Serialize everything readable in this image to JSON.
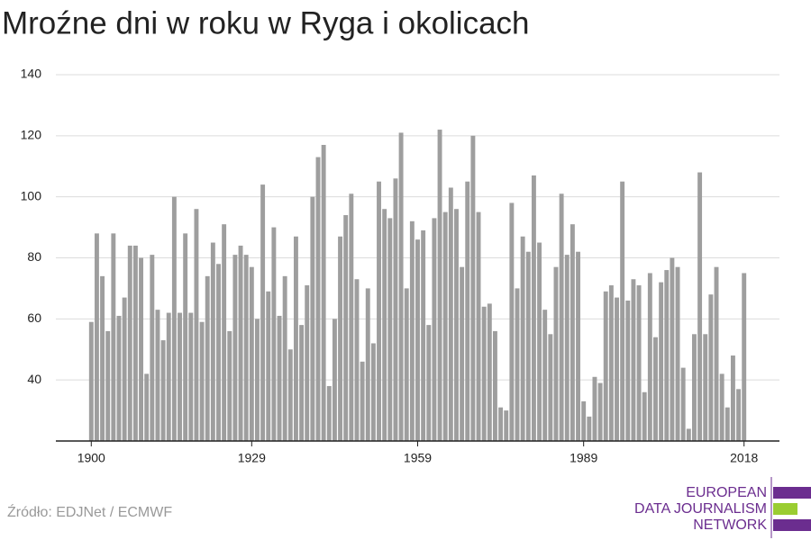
{
  "chart_data": {
    "type": "bar",
    "title": "Mroźne dni w roku w Ryga i okolicach",
    "source": "Źródło: EDJNet / ECMWF",
    "logo": [
      "EUROPEAN",
      "DATA JOURNALISM",
      "NETWORK"
    ],
    "color": "#9e9e9e",
    "grid": true,
    "x": [
      1900,
      1901,
      1902,
      1903,
      1904,
      1905,
      1906,
      1907,
      1908,
      1909,
      1910,
      1911,
      1912,
      1913,
      1914,
      1915,
      1916,
      1917,
      1918,
      1919,
      1920,
      1921,
      1922,
      1923,
      1924,
      1925,
      1926,
      1927,
      1928,
      1929,
      1930,
      1931,
      1932,
      1933,
      1934,
      1935,
      1936,
      1937,
      1938,
      1939,
      1940,
      1941,
      1942,
      1943,
      1944,
      1945,
      1946,
      1947,
      1948,
      1949,
      1950,
      1951,
      1952,
      1953,
      1954,
      1955,
      1956,
      1957,
      1958,
      1959,
      1960,
      1961,
      1962,
      1963,
      1964,
      1965,
      1966,
      1967,
      1968,
      1969,
      1970,
      1971,
      1972,
      1973,
      1974,
      1975,
      1976,
      1977,
      1978,
      1979,
      1980,
      1981,
      1982,
      1983,
      1984,
      1985,
      1986,
      1987,
      1988,
      1989,
      1990,
      1991,
      1992,
      1993,
      1994,
      1995,
      1996,
      1997,
      1998,
      1999,
      2000,
      2001,
      2002,
      2003,
      2004,
      2005,
      2006,
      2007,
      2008,
      2009,
      2010,
      2011,
      2012,
      2013,
      2014,
      2015,
      2016,
      2017,
      2018
    ],
    "values": [
      59,
      88,
      74,
      56,
      88,
      61,
      67,
      84,
      84,
      80,
      42,
      81,
      63,
      53,
      62,
      100,
      62,
      88,
      62,
      96,
      59,
      74,
      85,
      78,
      91,
      56,
      81,
      84,
      81,
      77,
      60,
      104,
      69,
      90,
      61,
      74,
      50,
      87,
      58,
      71,
      100,
      113,
      117,
      38,
      60,
      87,
      94,
      101,
      73,
      46,
      70,
      52,
      105,
      96,
      93,
      106,
      121,
      70,
      92,
      86,
      89,
      58,
      93,
      122,
      95,
      103,
      96,
      77,
      105,
      120,
      95,
      64,
      65,
      56,
      31,
      30,
      98,
      70,
      87,
      82,
      107,
      85,
      63,
      55,
      77,
      101,
      81,
      91,
      82,
      33,
      28,
      41,
      39,
      69,
      71,
      67,
      105,
      66,
      73,
      71,
      36,
      75,
      54,
      72,
      76,
      80,
      77,
      44,
      24,
      55,
      108,
      55,
      68,
      77,
      42,
      31,
      48,
      37,
      75
    ],
    "xlim": [
      1893.6,
      2024.4
    ],
    "xticks": [
      1900,
      1929,
      1959,
      1989,
      2018
    ],
    "ylim": [
      20,
      140
    ],
    "yticks": [
      40,
      60,
      80,
      100,
      120,
      140
    ]
  }
}
